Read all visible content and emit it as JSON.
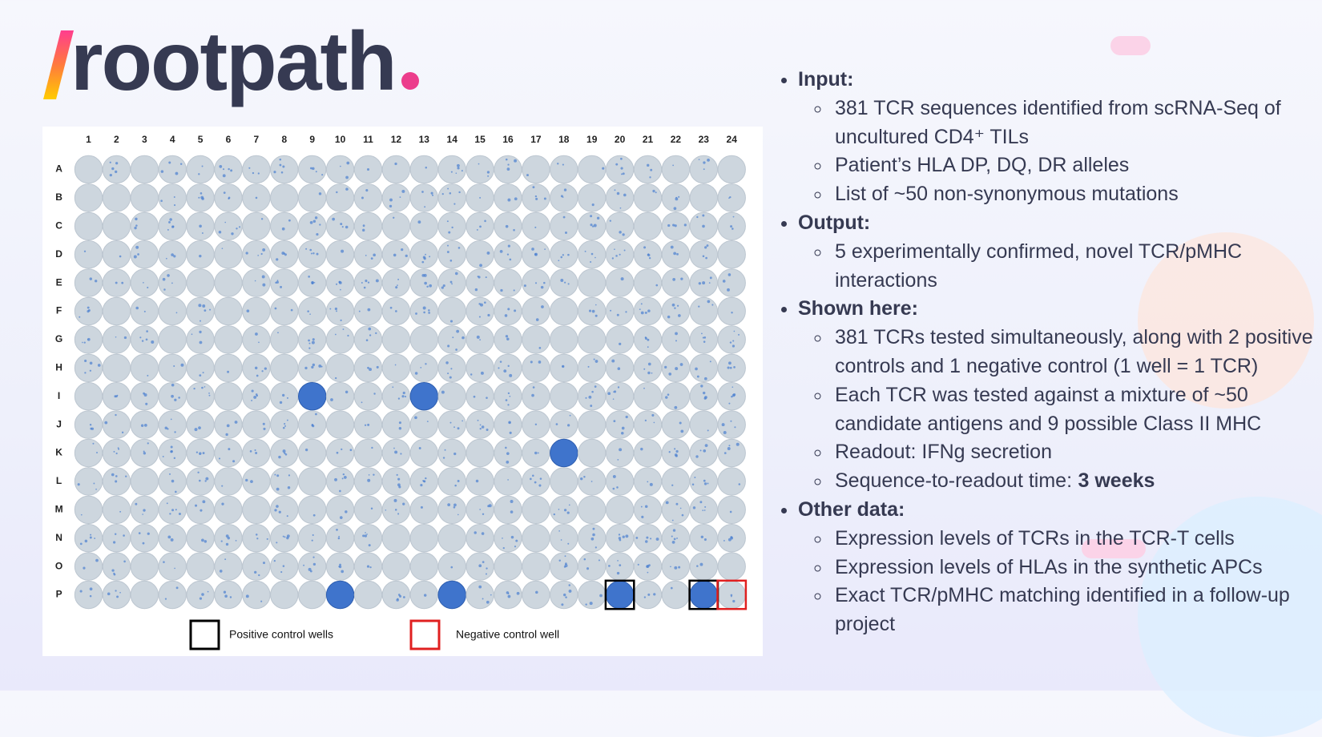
{
  "logo": {
    "text": "rootpath"
  },
  "plate": {
    "columns": [
      1,
      2,
      3,
      4,
      5,
      6,
      7,
      8,
      9,
      10,
      11,
      12,
      13,
      14,
      15,
      16,
      17,
      18,
      19,
      20,
      21,
      22,
      23,
      24
    ],
    "rows": [
      "A",
      "B",
      "C",
      "D",
      "E",
      "F",
      "G",
      "H",
      "I",
      "J",
      "K",
      "L",
      "M",
      "N",
      "O",
      "P"
    ],
    "legend": {
      "positive": "Positive control wells",
      "negative": "Negative control well"
    }
  },
  "bullets": [
    {
      "heading": "Input:",
      "items": [
        "381 TCR sequences identified from scRNA-Seq of uncultured CD4⁺ TILs",
        "Patient’s HLA DP, DQ, DR alleles",
        "List of ~50 non-synonymous mutations"
      ]
    },
    {
      "heading": "Output:",
      "items": [
        "5 experimentally confirmed, novel TCR/pMHC interactions"
      ]
    },
    {
      "heading": "Shown here:",
      "items": [
        "381 TCRs tested simultaneously, along with 2 positive controls and 1 negative control (1 well = 1 TCR)",
        "Each TCR was tested against a mixture of ~50 candidate antigens and 9 possible Class II MHC",
        "Readout: IFNg secretion",
        {
          "text": "Sequence-to-readout time:",
          "bold": "3 weeks"
        }
      ]
    },
    {
      "heading": "Other data:",
      "items": [
        "Expression levels of TCRs in the TCR-T cells",
        "Expression levels of HLAs in the synthetic APCs",
        "Exact TCR/pMHC matching identified in a follow-up project"
      ]
    }
  ]
}
